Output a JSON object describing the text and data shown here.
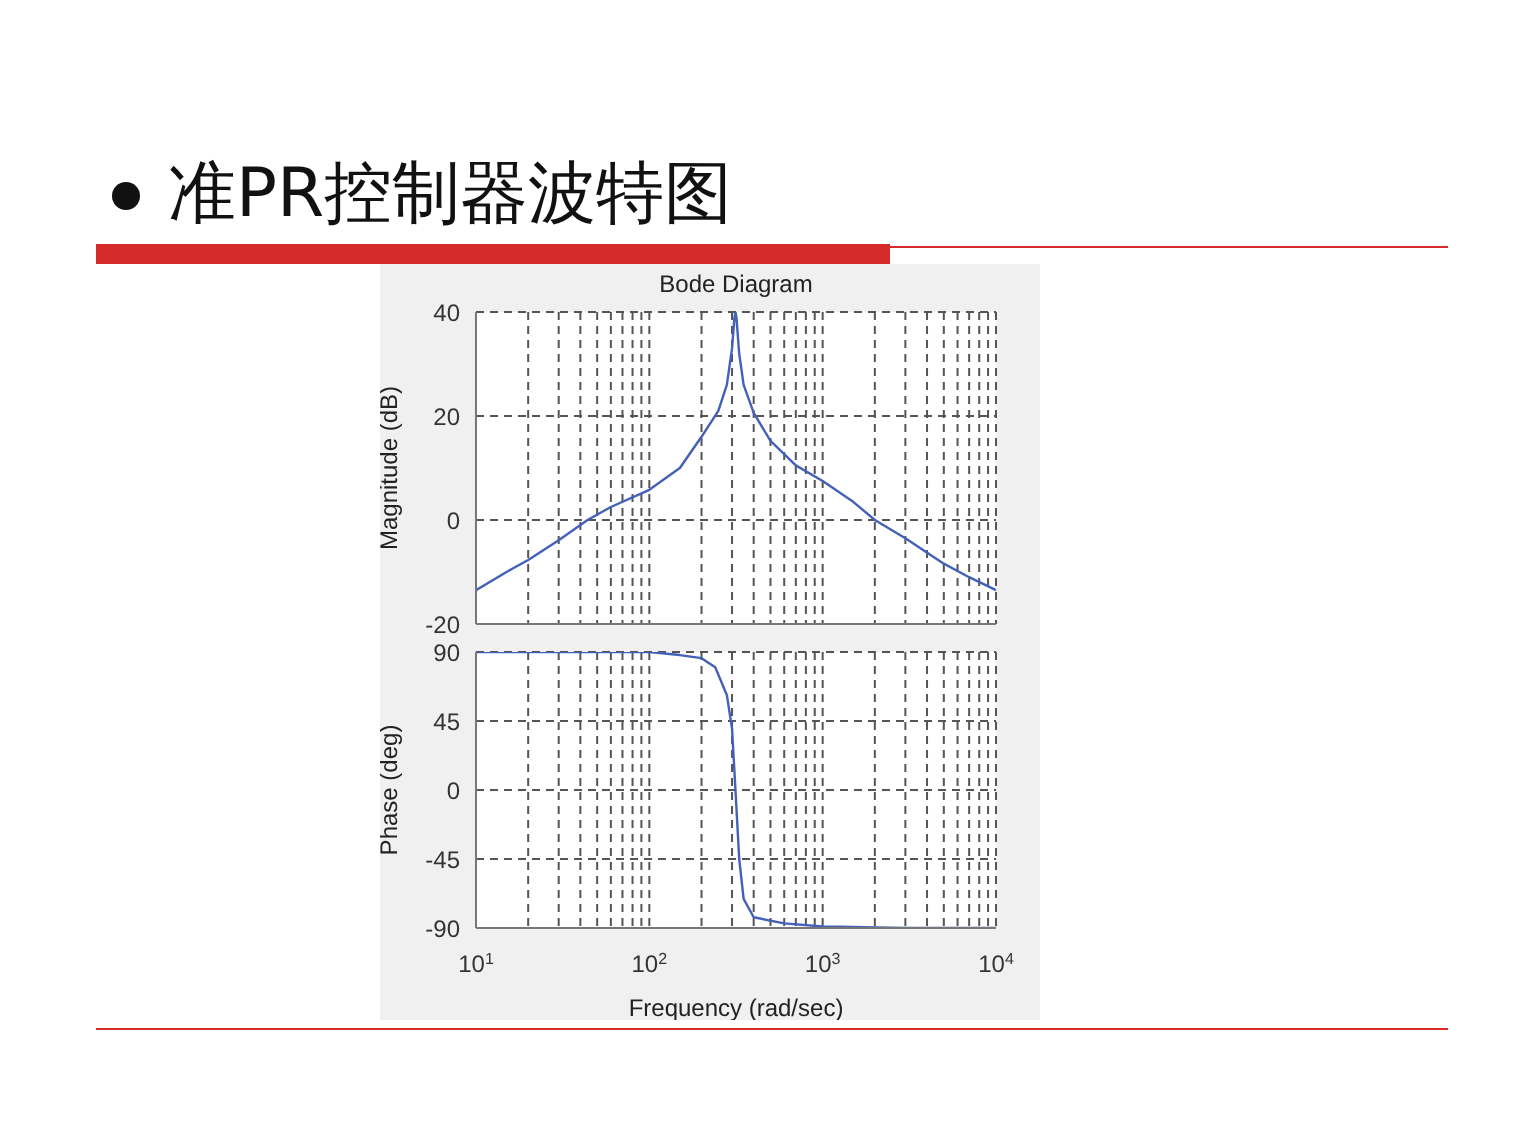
{
  "chart_data": [
    {
      "type": "line",
      "title": "准PR控制器波特图",
      "subtitle": "Bode Diagram",
      "ylabel": "Magnitude (dB)",
      "log": "x",
      "xlim": [
        10,
        10000
      ],
      "xticks": [
        {
          "value": 10,
          "label": null
        },
        {
          "value": 20,
          "label": null
        },
        {
          "value": 30,
          "label": null
        },
        {
          "value": 40,
          "label": null
        },
        {
          "value": 50,
          "label": null
        },
        {
          "value": 60,
          "label": null
        },
        {
          "value": 70,
          "label": null
        },
        {
          "value": 80,
          "label": null
        },
        {
          "value": 90,
          "label": null
        },
        {
          "value": 100,
          "label": null
        },
        {
          "value": 200,
          "label": null
        },
        {
          "value": 300,
          "label": null
        },
        {
          "value": 400,
          "label": null
        },
        {
          "value": 500,
          "label": null
        },
        {
          "value": 600,
          "label": null
        },
        {
          "value": 700,
          "label": null
        },
        {
          "value": 800,
          "label": null
        },
        {
          "value": 900,
          "label": null
        },
        {
          "value": 1000,
          "label": null
        },
        {
          "value": 2000,
          "label": null
        },
        {
          "value": 3000,
          "label": null
        },
        {
          "value": 4000,
          "label": null
        },
        {
          "value": 5000,
          "label": null
        },
        {
          "value": 6000,
          "label": null
        },
        {
          "value": 7000,
          "label": null
        },
        {
          "value": 8000,
          "label": null
        },
        {
          "value": 9000,
          "label": null
        },
        {
          "value": 10000,
          "label": null
        }
      ],
      "ylim": [
        -20,
        40
      ],
      "yticks": [
        -20,
        0,
        20,
        40
      ],
      "grid": true,
      "tick_labels": "y",
      "marker": "none",
      "x": [
        10,
        15,
        20,
        30,
        44,
        60,
        100,
        150,
        200,
        250,
        280,
        300,
        310,
        314,
        318,
        330,
        350,
        400,
        500,
        700,
        1000,
        1500,
        2000,
        3000,
        5000,
        7000,
        10000
      ],
      "series": [
        {
          "color": "#4361b8",
          "values": [
            -13.5,
            -10,
            -7.7,
            -3.9,
            0,
            2.5,
            5.8,
            10,
            16,
            21,
            26,
            33,
            39,
            40,
            39,
            32,
            26,
            20.6,
            15.2,
            10.5,
            7.5,
            3.5,
            0,
            -3.5,
            -8.4,
            -11,
            -13.5
          ]
        }
      ]
    },
    {
      "type": "line",
      "xlabel": "Frequency  (rad/sec)",
      "ylabel": "Phase (deg)",
      "log": "x",
      "xlim": [
        10,
        10000
      ],
      "xticks": [
        {
          "value": 10,
          "label": "10$^{1}$"
        },
        {
          "value": 20,
          "label": null
        },
        {
          "value": 30,
          "label": null
        },
        {
          "value": 40,
          "label": null
        },
        {
          "value": 50,
          "label": null
        },
        {
          "value": 60,
          "label": null
        },
        {
          "value": 70,
          "label": null
        },
        {
          "value": 80,
          "label": null
        },
        {
          "value": 90,
          "label": null
        },
        {
          "value": 100,
          "label": "10$^{2}$"
        },
        {
          "value": 200,
          "label": null
        },
        {
          "value": 300,
          "label": null
        },
        {
          "value": 400,
          "label": null
        },
        {
          "value": 500,
          "label": null
        },
        {
          "value": 600,
          "label": null
        },
        {
          "value": 700,
          "label": null
        },
        {
          "value": 800,
          "label": null
        },
        {
          "value": 900,
          "label": null
        },
        {
          "value": 1000,
          "label": "10$^{3}$"
        },
        {
          "value": 2000,
          "label": null
        },
        {
          "value": 3000,
          "label": null
        },
        {
          "value": 4000,
          "label": null
        },
        {
          "value": 5000,
          "label": null
        },
        {
          "value": 6000,
          "label": null
        },
        {
          "value": 7000,
          "label": null
        },
        {
          "value": 8000,
          "label": null
        },
        {
          "value": 9000,
          "label": null
        },
        {
          "value": 10000,
          "label": "10$^{4}$"
        }
      ],
      "ylim": [
        -90,
        90
      ],
      "yticks": [
        -90,
        -45,
        0,
        45,
        90
      ],
      "grid": true,
      "marker": "none",
      "x": [
        10,
        50,
        100,
        150,
        200,
        240,
        280,
        300,
        314,
        330,
        350,
        400,
        600,
        1000,
        3000,
        10000
      ],
      "series": [
        {
          "color": "#4361b8",
          "values": [
            90,
            90,
            90,
            88,
            86,
            80,
            62,
            40,
            0,
            -45,
            -71,
            -83,
            -87,
            -89,
            -90,
            -90
          ]
        }
      ]
    }
  ]
}
